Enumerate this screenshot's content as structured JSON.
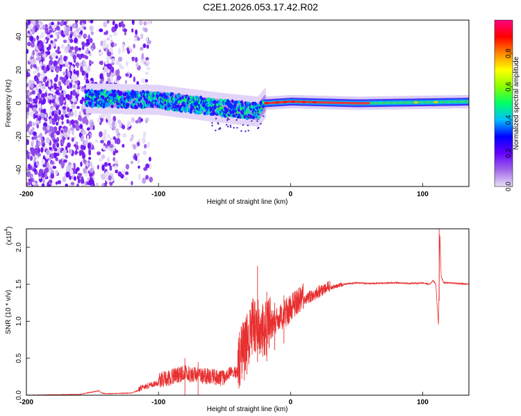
{
  "chart_data": [
    {
      "type": "heatmap",
      "title": "C2E1.2026.053.17.42.R02",
      "xlabel": "Height of straight line (km)",
      "ylabel": "Frequency (Hz)",
      "xlim": [
        -200,
        135
      ],
      "ylim": [
        -50,
        50
      ],
      "x_ticks": [
        -200,
        -100,
        0,
        100
      ],
      "x_tick_labels": [
        "-200",
        "-100",
        "0",
        "100"
      ],
      "y_ticks": [
        40,
        20,
        0,
        -20,
        -40
      ],
      "y_tick_labels": [
        "40",
        "20",
        "0",
        "-20",
        "-40"
      ],
      "colorbar": {
        "label": "Normalized spectral amplitude",
        "range": [
          0,
          1
        ],
        "ticks": [
          0.0,
          0.2,
          0.4,
          0.6,
          0.8
        ],
        "tick_labels": [
          "0.0",
          "0.2",
          "0.4",
          "0.6",
          "0.8"
        ],
        "colors": [
          "#e8e0f6",
          "#a066e8",
          "#6600ff",
          "#0000ff",
          "#00bfff",
          "#00ff66",
          "#88ff00",
          "#ffff00",
          "#ff8800",
          "#ff0000",
          "#ff0080"
        ]
      },
      "description_of_signal": {
        "noise_region_x": [
          -200,
          -115
        ],
        "signal_start_x": -155,
        "signal_band": [
          {
            "x": -155,
            "center": 3,
            "halfwidth": 6
          },
          {
            "x": -100,
            "center": 2,
            "halfwidth": 6
          },
          {
            "x": -50,
            "center": -3,
            "halfwidth": 6
          },
          {
            "x": -25,
            "center": -5,
            "halfwidth": 6
          },
          {
            "x": -20,
            "center": 0,
            "halfwidth": 3
          },
          {
            "x": 0,
            "center": 1,
            "halfwidth": 3
          },
          {
            "x": 50,
            "center": 0,
            "halfwidth": 3
          },
          {
            "x": 135,
            "center": 1,
            "halfwidth": 3
          }
        ]
      }
    },
    {
      "type": "line",
      "xlabel": "Height of straight line (km)",
      "ylabel": "SNR (10 * v/v)",
      "y_multiplier": "(x10",
      "y_multiplier_exp": "4",
      "y_multiplier_close": ")",
      "xlim": [
        -200,
        135
      ],
      "ylim": [
        0,
        2.25
      ],
      "x_ticks": [
        -200,
        -100,
        0,
        100
      ],
      "x_tick_labels": [
        "-200",
        "-100",
        "0",
        "100"
      ],
      "y_ticks": [
        0.0,
        0.5,
        1.0,
        1.5,
        2.0
      ],
      "y_tick_labels": [
        "0.0",
        "0.5",
        "1.0",
        "1.5",
        "2.0"
      ],
      "color": "#e83030",
      "series": [
        {
          "name": "SNR",
          "x": [
            -200,
            -160,
            -145,
            -143,
            -140,
            -120,
            -110,
            -100,
            -90,
            -80,
            -70,
            -60,
            -50,
            -45,
            -40,
            -35,
            -30,
            -28,
            -25,
            -20,
            -15,
            -10,
            -5,
            0,
            10,
            20,
            30,
            40,
            50,
            60,
            80,
            90,
            100,
            105,
            108,
            110,
            111,
            112,
            113,
            114,
            116,
            120,
            135
          ],
          "y": [
            0.0,
            0.01,
            0.06,
            0.03,
            0.02,
            0.03,
            0.1,
            0.15,
            0.2,
            0.25,
            0.22,
            0.2,
            0.18,
            0.3,
            0.25,
            0.5,
            0.7,
            0.8,
            0.75,
            0.7,
            0.85,
            0.95,
            1.0,
            1.1,
            1.25,
            1.35,
            1.45,
            1.5,
            1.52,
            1.51,
            1.52,
            1.51,
            1.52,
            1.5,
            1.55,
            1.5,
            1.2,
            0.95,
            2.2,
            1.6,
            1.52,
            1.52,
            1.5
          ]
        }
      ],
      "spikes": [
        {
          "x": -80,
          "y": 0.5
        },
        {
          "x": -70,
          "y": 0.45
        },
        {
          "x": -35,
          "y": 0.85
        },
        {
          "x": -33,
          "y": 1.1
        },
        {
          "x": -25,
          "y": 1.75
        },
        {
          "x": -18,
          "y": 1.4
        },
        {
          "x": -12,
          "y": 1.25
        },
        {
          "x": -5,
          "y": 1.35
        },
        {
          "x": 112.5,
          "y": 2.25
        }
      ]
    }
  ]
}
